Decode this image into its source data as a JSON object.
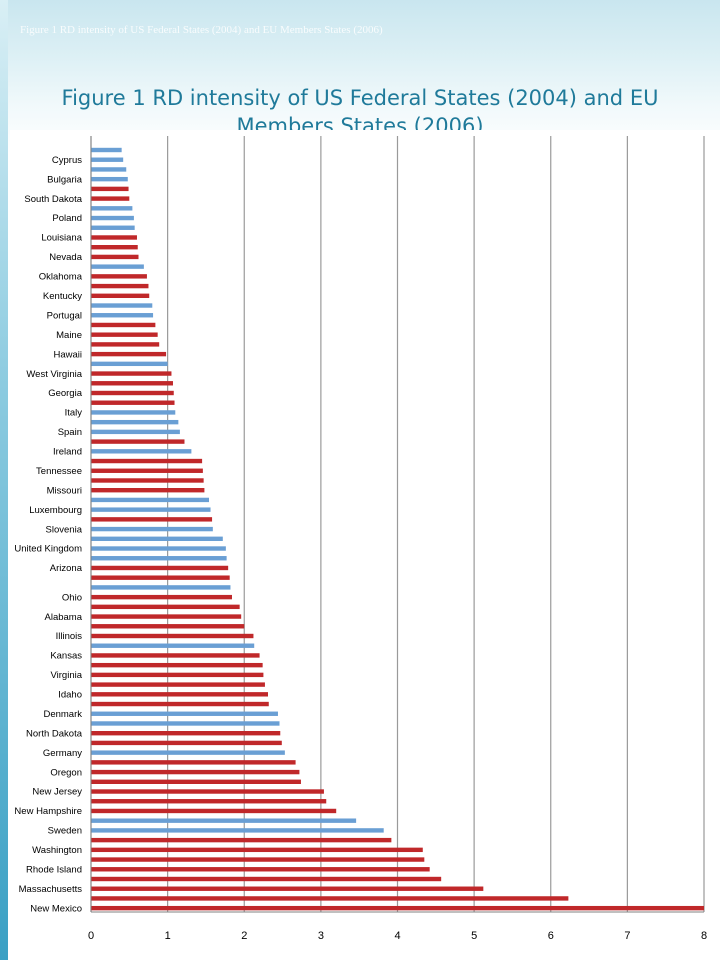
{
  "page": {
    "caption": "Figure 1 RD intensity of US Federal States (2004) and EU Members States (2006)"
  },
  "colors": {
    "us_state": "#c0282a",
    "eu_member": "#6a9fd4",
    "gridline": "#9a9a9a",
    "title": "#1f7a9a"
  },
  "chart_data": {
    "type": "bar",
    "orientation": "horizontal",
    "title": "Figure 1 RD intensity of US Federal States (2004) and EU Members States (2006)",
    "xlabel": "",
    "ylabel": "",
    "xlim": [
      0,
      8
    ],
    "xticks": [
      "0",
      "1",
      "2",
      "3",
      "4",
      "5",
      "6",
      "7",
      "8"
    ],
    "grid": "vertical",
    "legend": "none",
    "rows": [
      {
        "label": "",
        "value": 0.4,
        "group": "eu"
      },
      {
        "label": "Cyprus",
        "value": 0.42,
        "group": "eu"
      },
      {
        "label": "",
        "value": 0.46,
        "group": "eu"
      },
      {
        "label": "Bulgaria",
        "value": 0.48,
        "group": "eu"
      },
      {
        "label": "",
        "value": 0.49,
        "group": "us"
      },
      {
        "label": "South Dakota",
        "value": 0.5,
        "group": "us"
      },
      {
        "label": "",
        "value": 0.54,
        "group": "eu"
      },
      {
        "label": "Poland",
        "value": 0.56,
        "group": "eu"
      },
      {
        "label": "",
        "value": 0.57,
        "group": "eu"
      },
      {
        "label": "Louisiana",
        "value": 0.6,
        "group": "us"
      },
      {
        "label": "",
        "value": 0.61,
        "group": "us"
      },
      {
        "label": "Nevada",
        "value": 0.62,
        "group": "us"
      },
      {
        "label": "",
        "value": 0.69,
        "group": "eu"
      },
      {
        "label": "Oklahoma",
        "value": 0.73,
        "group": "us"
      },
      {
        "label": "",
        "value": 0.75,
        "group": "us"
      },
      {
        "label": "Kentucky",
        "value": 0.76,
        "group": "us"
      },
      {
        "label": "",
        "value": 0.8,
        "group": "eu"
      },
      {
        "label": "Portugal",
        "value": 0.81,
        "group": "eu"
      },
      {
        "label": "",
        "value": 0.84,
        "group": "us"
      },
      {
        "label": "Maine",
        "value": 0.87,
        "group": "us"
      },
      {
        "label": "",
        "value": 0.89,
        "group": "us"
      },
      {
        "label": "Hawaii",
        "value": 0.98,
        "group": "us"
      },
      {
        "label": "",
        "value": 1.0,
        "group": "eu"
      },
      {
        "label": "West Virginia",
        "value": 1.05,
        "group": "us"
      },
      {
        "label": "",
        "value": 1.07,
        "group": "us"
      },
      {
        "label": "Georgia",
        "value": 1.08,
        "group": "us"
      },
      {
        "label": "",
        "value": 1.09,
        "group": "us"
      },
      {
        "label": "Italy",
        "value": 1.1,
        "group": "eu"
      },
      {
        "label": "",
        "value": 1.14,
        "group": "eu"
      },
      {
        "label": "Spain",
        "value": 1.16,
        "group": "eu"
      },
      {
        "label": "",
        "value": 1.22,
        "group": "us"
      },
      {
        "label": "Ireland",
        "value": 1.31,
        "group": "eu"
      },
      {
        "label": "",
        "value": 1.45,
        "group": "us"
      },
      {
        "label": "Tennessee",
        "value": 1.46,
        "group": "us"
      },
      {
        "label": "",
        "value": 1.47,
        "group": "us"
      },
      {
        "label": "Missouri",
        "value": 1.48,
        "group": "us"
      },
      {
        "label": "",
        "value": 1.54,
        "group": "eu"
      },
      {
        "label": "Luxembourg",
        "value": 1.56,
        "group": "eu"
      },
      {
        "label": "",
        "value": 1.58,
        "group": "us"
      },
      {
        "label": "Slovenia",
        "value": 1.59,
        "group": "eu"
      },
      {
        "label": "",
        "value": 1.72,
        "group": "eu"
      },
      {
        "label": "United Kingdom",
        "value": 1.76,
        "group": "eu"
      },
      {
        "label": "",
        "value": 1.77,
        "group": "eu"
      },
      {
        "label": "Arizona",
        "value": 1.79,
        "group": "us"
      },
      {
        "label": "",
        "value": 1.81,
        "group": "us"
      },
      {
        "label": "",
        "value": 1.82,
        "group": "eu"
      },
      {
        "label": "Ohio",
        "value": 1.84,
        "group": "us"
      },
      {
        "label": "",
        "value": 1.94,
        "group": "us"
      },
      {
        "label": "Alabama",
        "value": 1.96,
        "group": "us"
      },
      {
        "label": "",
        "value": 2.0,
        "group": "us"
      },
      {
        "label": "Illinois",
        "value": 2.12,
        "group": "us"
      },
      {
        "label": "",
        "value": 2.13,
        "group": "eu"
      },
      {
        "label": "Kansas",
        "value": 2.2,
        "group": "us"
      },
      {
        "label": "",
        "value": 2.24,
        "group": "us"
      },
      {
        "label": "Virginia",
        "value": 2.25,
        "group": "us"
      },
      {
        "label": "",
        "value": 2.27,
        "group": "us"
      },
      {
        "label": "Idaho",
        "value": 2.31,
        "group": "us"
      },
      {
        "label": "",
        "value": 2.32,
        "group": "us"
      },
      {
        "label": "Denmark",
        "value": 2.44,
        "group": "eu"
      },
      {
        "label": "",
        "value": 2.46,
        "group": "eu"
      },
      {
        "label": "North Dakota",
        "value": 2.47,
        "group": "us"
      },
      {
        "label": "",
        "value": 2.49,
        "group": "us"
      },
      {
        "label": "Germany",
        "value": 2.53,
        "group": "eu"
      },
      {
        "label": "",
        "value": 2.67,
        "group": "us"
      },
      {
        "label": "Oregon",
        "value": 2.72,
        "group": "us"
      },
      {
        "label": "",
        "value": 2.74,
        "group": "us"
      },
      {
        "label": "New Jersey",
        "value": 3.04,
        "group": "us"
      },
      {
        "label": "",
        "value": 3.07,
        "group": "us"
      },
      {
        "label": "New Hampshire",
        "value": 3.2,
        "group": "us"
      },
      {
        "label": "",
        "value": 3.46,
        "group": "eu"
      },
      {
        "label": "Sweden",
        "value": 3.82,
        "group": "eu"
      },
      {
        "label": "",
        "value": 3.92,
        "group": "us"
      },
      {
        "label": "Washington",
        "value": 4.33,
        "group": "us"
      },
      {
        "label": "",
        "value": 4.35,
        "group": "us"
      },
      {
        "label": "Rhode Island",
        "value": 4.42,
        "group": "us"
      },
      {
        "label": "",
        "value": 4.57,
        "group": "us"
      },
      {
        "label": "Massachusetts",
        "value": 5.12,
        "group": "us"
      },
      {
        "label": "",
        "value": 6.23,
        "group": "us"
      },
      {
        "label": "New Mexico",
        "value": 8.0,
        "group": "us"
      }
    ]
  }
}
